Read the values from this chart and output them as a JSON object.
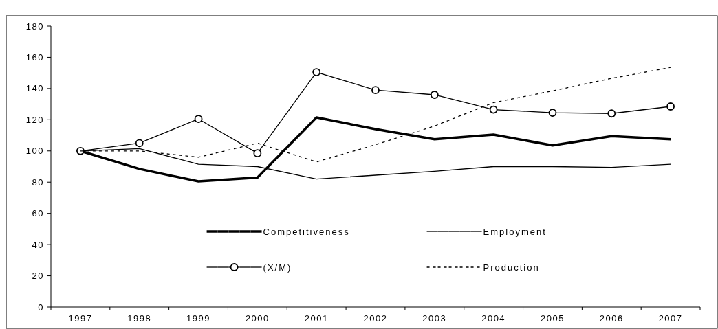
{
  "chart_data": {
    "type": "line",
    "categories": [
      "1997",
      "1998",
      "1999",
      "2000",
      "2001",
      "2002",
      "2003",
      "2004",
      "2005",
      "2006",
      "2007"
    ],
    "ylim": [
      0,
      180
    ],
    "yticks": [
      0,
      20,
      40,
      60,
      80,
      100,
      120,
      140,
      160,
      180
    ],
    "grid": false,
    "legend": "bottom",
    "series": [
      {
        "name": "Competitiveness",
        "color": "#000000",
        "marker": "none",
        "line_style": "solid",
        "values": [
          100,
          88.5,
          80.5,
          83,
          121.5,
          114,
          107.5,
          110.5,
          103.5,
          109.5,
          107.5
        ]
      },
      {
        "name": "Employment",
        "color": "#000000",
        "marker": "none",
        "line_style": "solid",
        "values": [
          100,
          101.5,
          91.5,
          90,
          82,
          84.5,
          87,
          90,
          90,
          89.5,
          91.5
        ]
      },
      {
        "name": "(X/M)",
        "color": "#000000",
        "marker": "circle",
        "line_style": "solid",
        "values": [
          100,
          105,
          120.5,
          98.5,
          150.5,
          139,
          136,
          126.5,
          124.5,
          124,
          128.5
        ]
      },
      {
        "name": "Production",
        "color": "#000000",
        "marker": "none",
        "line_style": "dashed",
        "values": [
          100,
          100,
          96,
          105,
          93,
          104,
          116,
          131,
          138.5,
          146.5,
          153.5
        ]
      }
    ]
  }
}
